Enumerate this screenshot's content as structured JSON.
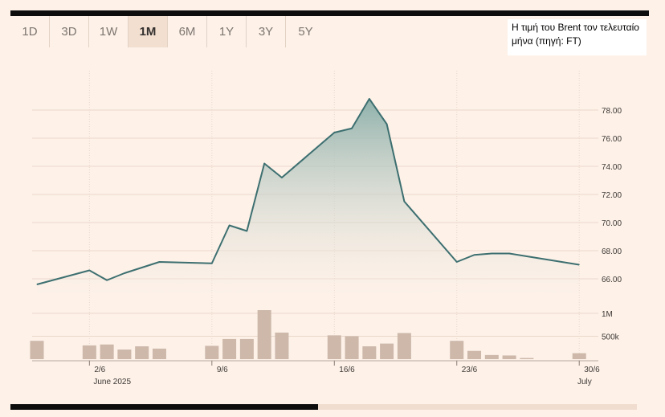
{
  "tabs": [
    {
      "label": "1D",
      "active": false
    },
    {
      "label": "3D",
      "active": false
    },
    {
      "label": "1W",
      "active": false
    },
    {
      "label": "1M",
      "active": true
    },
    {
      "label": "6M",
      "active": false
    },
    {
      "label": "1Y",
      "active": false
    },
    {
      "label": "3Y",
      "active": false
    },
    {
      "label": "5Y",
      "active": false
    }
  ],
  "caption": "Η τιμή του Brent τον τελευταίο μήνα (πηγή: FT)",
  "colors": {
    "line": "#3d6f70",
    "fill_top": "#8fb1ab",
    "bar": "#cdb8aa",
    "grid": "#ead8cb",
    "background": "#fdf1e8"
  },
  "chart_data": {
    "type": "line",
    "title": "Η τιμή του Brent τον τελευταίο μήνα (πηγή: FT)",
    "ylim": [
      64.8,
      80.8
    ],
    "y_ticks": [
      66,
      68,
      70,
      72,
      74,
      76,
      78
    ],
    "y_tick_labels": [
      "66.00",
      "68.00",
      "70.00",
      "72.00",
      "74.00",
      "76.00",
      "78.00"
    ],
    "x_ticks": [
      {
        "date": "2025-06-02",
        "label": "2/6",
        "sublabel": "June 2025"
      },
      {
        "date": "2025-06-09",
        "label": "9/6",
        "sublabel": ""
      },
      {
        "date": "2025-06-16",
        "label": "16/6",
        "sublabel": ""
      },
      {
        "date": "2025-06-23",
        "label": "23/6",
        "sublabel": ""
      },
      {
        "date": "2025-06-30",
        "label": "30/6",
        "sublabel": ""
      },
      {
        "date": "2025-07-01",
        "label": "",
        "sublabel": "July"
      }
    ],
    "x_domain": [
      "2025-05-30",
      "2025-07-01"
    ],
    "price": [
      {
        "date": "2025-05-30",
        "value": 65.6
      },
      {
        "date": "2025-06-02",
        "value": 66.6
      },
      {
        "date": "2025-06-03",
        "value": 65.9
      },
      {
        "date": "2025-06-04",
        "value": 66.4
      },
      {
        "date": "2025-06-05",
        "value": 66.8
      },
      {
        "date": "2025-06-06",
        "value": 67.2
      },
      {
        "date": "2025-06-09",
        "value": 67.1
      },
      {
        "date": "2025-06-10",
        "value": 69.8
      },
      {
        "date": "2025-06-11",
        "value": 69.4
      },
      {
        "date": "2025-06-12",
        "value": 74.2
      },
      {
        "date": "2025-06-13",
        "value": 73.2
      },
      {
        "date": "2025-06-16",
        "value": 76.4
      },
      {
        "date": "2025-06-17",
        "value": 76.7
      },
      {
        "date": "2025-06-18",
        "value": 78.8
      },
      {
        "date": "2025-06-19",
        "value": 77.0
      },
      {
        "date": "2025-06-20",
        "value": 71.5
      },
      {
        "date": "2025-06-23",
        "value": 67.2
      },
      {
        "date": "2025-06-24",
        "value": 67.7
      },
      {
        "date": "2025-06-25",
        "value": 67.8
      },
      {
        "date": "2025-06-26",
        "value": 67.8
      },
      {
        "date": "2025-06-27",
        "value": 67.6
      },
      {
        "date": "2025-06-30",
        "value": 67.0
      }
    ],
    "volume_ticks": [
      {
        "value": 500000,
        "label": "500k"
      },
      {
        "value": 1000000,
        "label": "1M"
      }
    ],
    "volume": [
      {
        "date": "2025-05-30",
        "value": 400000
      },
      {
        "date": "2025-06-02",
        "value": 300000
      },
      {
        "date": "2025-06-03",
        "value": 320000
      },
      {
        "date": "2025-06-04",
        "value": 210000
      },
      {
        "date": "2025-06-05",
        "value": 280000
      },
      {
        "date": "2025-06-06",
        "value": 230000
      },
      {
        "date": "2025-06-09",
        "value": 290000
      },
      {
        "date": "2025-06-10",
        "value": 440000
      },
      {
        "date": "2025-06-11",
        "value": 440000
      },
      {
        "date": "2025-06-12",
        "value": 1070000
      },
      {
        "date": "2025-06-13",
        "value": 580000
      },
      {
        "date": "2025-06-16",
        "value": 520000
      },
      {
        "date": "2025-06-17",
        "value": 500000
      },
      {
        "date": "2025-06-18",
        "value": 280000
      },
      {
        "date": "2025-06-19",
        "value": 340000
      },
      {
        "date": "2025-06-20",
        "value": 570000
      },
      {
        "date": "2025-06-23",
        "value": 400000
      },
      {
        "date": "2025-06-24",
        "value": 180000
      },
      {
        "date": "2025-06-25",
        "value": 90000
      },
      {
        "date": "2025-06-26",
        "value": 80000
      },
      {
        "date": "2025-06-27",
        "value": 25000
      },
      {
        "date": "2025-06-30",
        "value": 130000
      }
    ],
    "grid": true
  }
}
